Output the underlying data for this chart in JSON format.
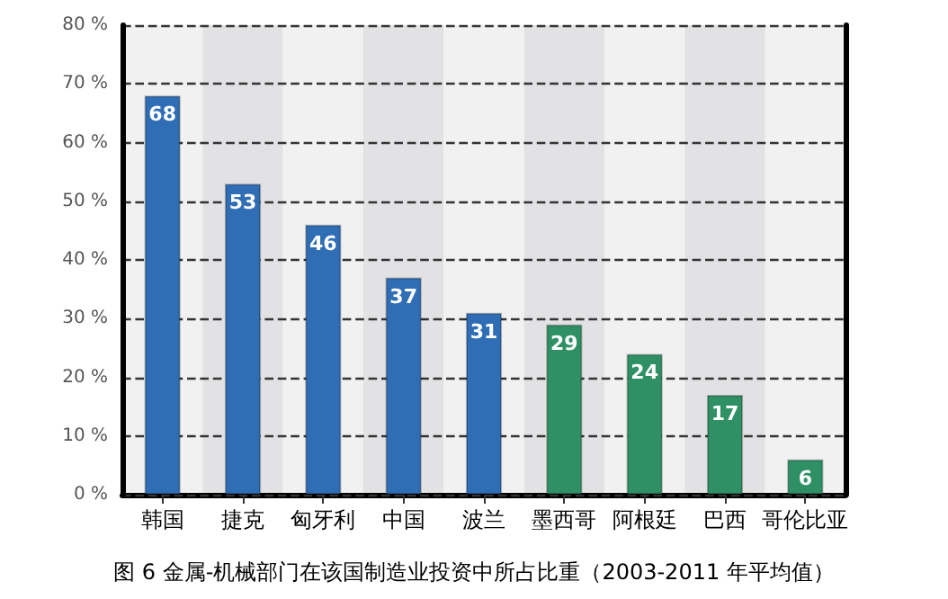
{
  "chart_data": {
    "type": "bar",
    "title": "图 6 金属-机械部门在该国制造业投资中所占比重（2003-2011 年平均值）",
    "categories": [
      "韩国",
      "捷克",
      "匈牙利",
      "中国",
      "波兰",
      "墨西哥",
      "阿根廷",
      "巴西",
      "哥伦比亚"
    ],
    "values": [
      68,
      53,
      46,
      37,
      31,
      29,
      24,
      17,
      6
    ],
    "colors": [
      "#2f6db5",
      "#2f6db5",
      "#2f6db5",
      "#2f6db5",
      "#2f6db5",
      "#2e9064",
      "#2e9064",
      "#2e9064",
      "#2e9064"
    ],
    "ylim": [
      0,
      80
    ],
    "yticks": [
      {
        "value": 0,
        "label": "0 %"
      },
      {
        "value": 10,
        "label": "10 %"
      },
      {
        "value": 20,
        "label": "20 %"
      },
      {
        "value": 30,
        "label": "30 %"
      },
      {
        "value": 40,
        "label": "40 %"
      },
      {
        "value": 50,
        "label": "50 %"
      },
      {
        "value": 60,
        "label": "60 %"
      },
      {
        "value": 70,
        "label": "70 %"
      },
      {
        "value": 80,
        "label": "80 %"
      }
    ],
    "grid": "y",
    "data_labels": true
  }
}
